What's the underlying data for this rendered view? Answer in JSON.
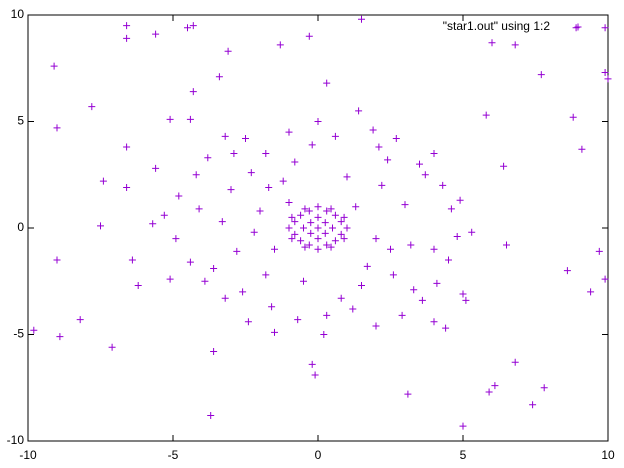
{
  "chart_data": {
    "type": "scatter",
    "xlim": [
      -10,
      10
    ],
    "ylim": [
      -10,
      10
    ],
    "xticks": [
      -10,
      -5,
      0,
      5,
      10
    ],
    "yticks": [
      -10,
      -5,
      0,
      5,
      10
    ],
    "legend": "top-right",
    "series": [
      {
        "name": "\"star1.out\" using 1:2",
        "color": "#9400d3",
        "x": [
          -6.6,
          -6.6,
          -5.6,
          -4.5,
          -4.3,
          -3.1,
          -1.3,
          -0.3,
          1.5,
          6.0,
          6.8,
          8.9,
          9.9,
          -9.1,
          -3.4,
          -4.3,
          0.3,
          9.9,
          10,
          7.7,
          -7.8,
          -9.0,
          -5.1,
          -4.4,
          5.8,
          8.8,
          -6.6,
          9.1,
          -5.6,
          6.4,
          -7.4,
          -6.6,
          -7.5,
          -9.0,
          -6.4,
          -6.2,
          6.5,
          8.6,
          9.7,
          9.9,
          9.4,
          -9.8,
          -8.9,
          -8.2,
          -7.1,
          -3.6,
          -3.7,
          -0.2,
          -0.1,
          3.1,
          5.0,
          5.9,
          6.1,
          6.8,
          7.4,
          7.8,
          5.0,
          5.1,
          4.4,
          4.0,
          -4.8,
          -4.2,
          -3.8,
          -3.2,
          -2.5,
          -1.8,
          -1.0,
          -0.2,
          0.6,
          1.4,
          2.1,
          2.7,
          3.5,
          4.0,
          4.3,
          4.6,
          4.8,
          4.5,
          4.1,
          3.6,
          2.9,
          2.0,
          1.2,
          0.3,
          -0.7,
          -1.6,
          -2.4,
          -3.2,
          -3.9,
          -4.4,
          -4.9,
          -5.3,
          -3.0,
          -2.3,
          -1.2,
          1.0,
          2.2,
          3.0,
          3.2,
          2.6,
          1.5,
          -0.5,
          -1.8,
          -2.8,
          -3.3,
          -2.0,
          2.0,
          -1.5,
          1.3,
          -1.0,
          3.7,
          -3.6,
          2.4,
          -2.6,
          0.8,
          -0.8,
          4.0,
          -4.1,
          1.9,
          -1.5,
          3.3,
          -2.9,
          4.9,
          -5.1,
          0.0,
          0.2,
          5.3,
          -5.7,
          2.5,
          -2.2,
          1.7,
          -1.7,
          0,
          0.5,
          -0.5,
          0,
          0,
          0.8,
          -0.8,
          0.8,
          -0.8,
          0.3,
          -0.3,
          0.3,
          -0.3,
          0.6,
          -0.6,
          0.6,
          -0.6,
          1.0,
          -1.0,
          0,
          0,
          0.25,
          -0.25,
          0.25,
          -0.25,
          0.9,
          -0.9,
          0.9,
          -0.9,
          0.45,
          -0.45,
          0.45,
          -0.45
        ],
        "y": [
          9.5,
          8.9,
          9.1,
          9.4,
          9.5,
          8.3,
          8.6,
          9.0,
          9.8,
          8.7,
          8.6,
          9.4,
          9.4,
          7.6,
          7.1,
          6.4,
          6.8,
          7.3,
          7.0,
          7.2,
          5.7,
          4.7,
          5.1,
          5.1,
          5.3,
          5.2,
          3.8,
          3.7,
          2.8,
          2.9,
          2.2,
          1.9,
          0.1,
          -1.5,
          -1.5,
          -2.7,
          -0.8,
          -2.0,
          -1.1,
          -2.4,
          -3.0,
          -4.8,
          -5.1,
          -4.3,
          -5.6,
          -5.8,
          -8.8,
          -6.4,
          -6.9,
          -7.8,
          -9.3,
          -7.7,
          -7.4,
          -6.3,
          -8.3,
          -7.5,
          -3.1,
          -3.4,
          -4.7,
          -4.4,
          1.5,
          2.5,
          3.3,
          4.3,
          4.2,
          3.5,
          4.5,
          3.9,
          4.3,
          5.5,
          3.8,
          4.2,
          3.0,
          3.5,
          2.0,
          0.9,
          -0.4,
          -1.5,
          -2.6,
          -3.4,
          -4.1,
          -4.6,
          -3.8,
          -4.1,
          -4.3,
          -3.7,
          -4.4,
          -3.3,
          -2.5,
          -1.6,
          -0.5,
          0.6,
          1.8,
          2.6,
          2.2,
          2.4,
          2.0,
          1.1,
          -0.8,
          -2.2,
          -2.7,
          -2.5,
          -2.2,
          -1.1,
          0.3,
          0.8,
          -0.5,
          -1.0,
          1.0,
          1.2,
          2.5,
          -1.9,
          3.2,
          -3.0,
          -3.3,
          3.1,
          -1.0,
          0.9,
          4.6,
          -4.9,
          -2.9,
          3.5,
          1.3,
          -2.4,
          5.0,
          -5.0,
          -0.2,
          0.2,
          -1.0,
          -0.2,
          -1.8,
          1.9,
          0,
          0,
          0,
          0.5,
          -0.5,
          0.3,
          0.3,
          -0.3,
          -0.3,
          0.8,
          0.8,
          -0.8,
          -0.8,
          0.6,
          0.6,
          -0.6,
          -0.6,
          0,
          0,
          1.0,
          -1.0,
          0.25,
          0.25,
          -0.25,
          -0.25,
          0.5,
          0.5,
          -0.5,
          -0.5,
          0.9,
          0.9,
          -0.9,
          -0.9
        ]
      }
    ]
  }
}
